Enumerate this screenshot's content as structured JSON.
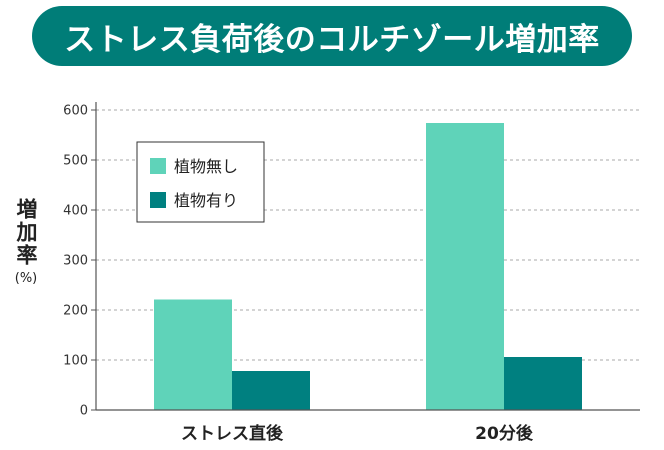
{
  "title": "ストレス負荷後のコルチゾール増加率",
  "colors": {
    "title_bg": "#007d78",
    "series1": "#5fd3b9",
    "series2": "#008080"
  },
  "chart_data": {
    "type": "bar",
    "title": "ストレス負荷後のコルチゾール増加率",
    "ylabel": "増加率",
    "yunit": "(%)",
    "xlabel": "",
    "categories": [
      "ストレス直後",
      "20分後"
    ],
    "series": [
      {
        "name": "植物無し",
        "values": [
          221,
          574
        ]
      },
      {
        "name": "植物有り",
        "values": [
          78,
          106
        ]
      }
    ],
    "ylim": [
      0,
      600
    ],
    "yticks": [
      0,
      100,
      200,
      300,
      400,
      500,
      600
    ],
    "grid": true,
    "legend": "top-left"
  }
}
